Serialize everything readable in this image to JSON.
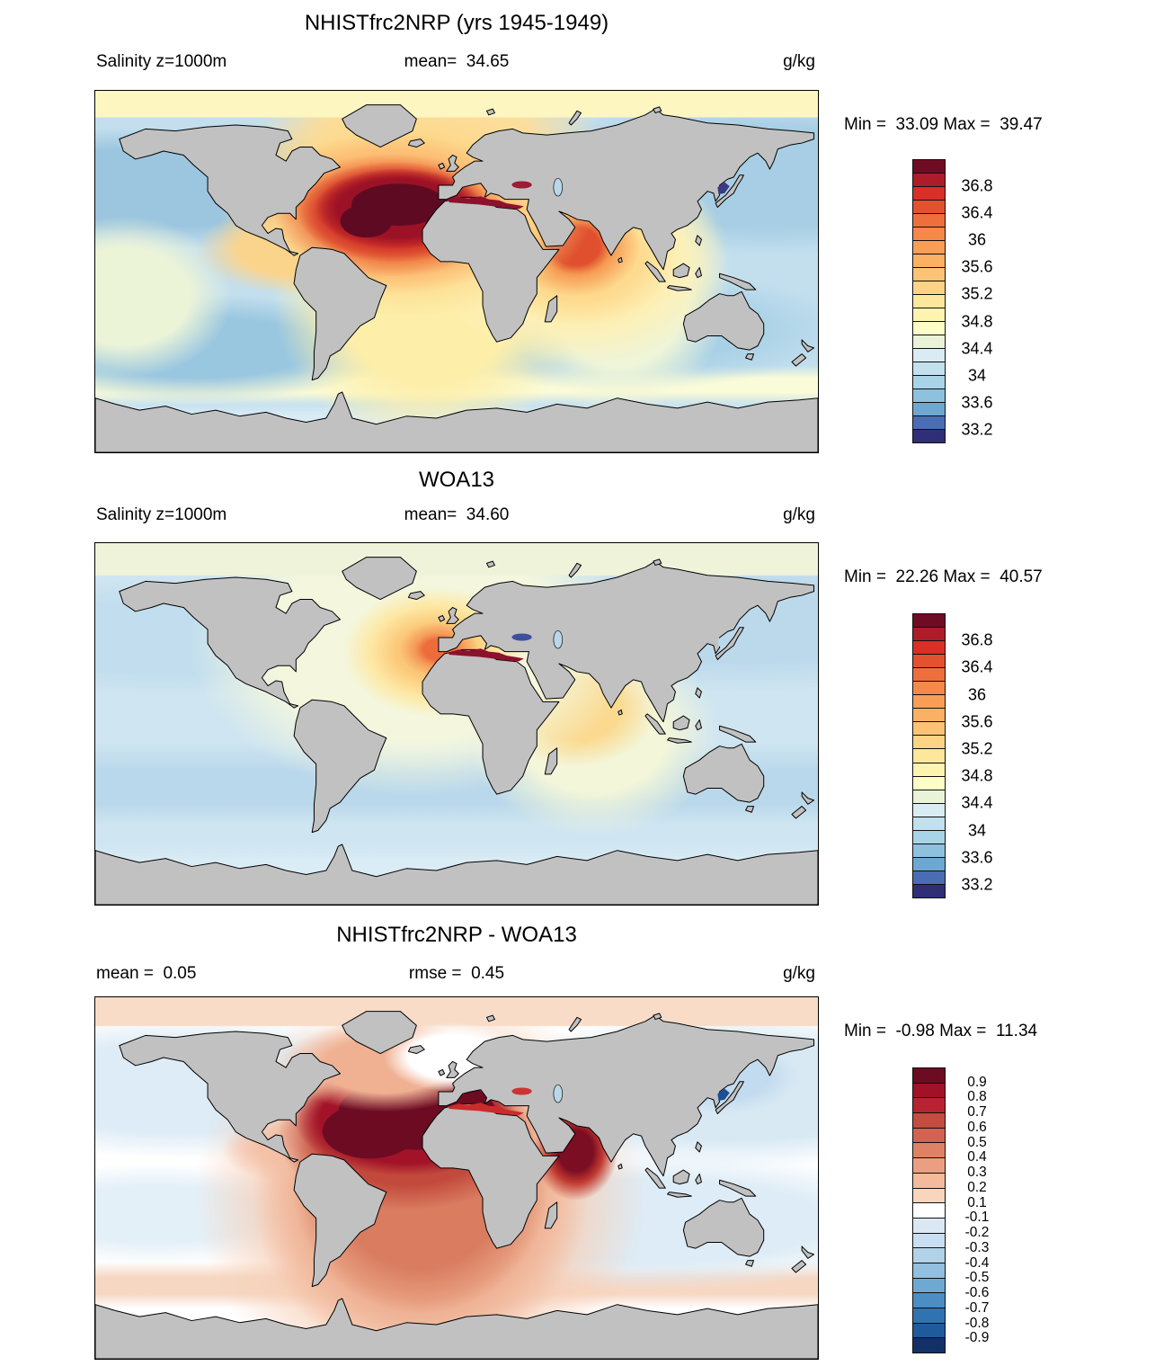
{
  "figure": {
    "land_color": "#c1c1c1",
    "coastline_color": "#000000",
    "background": "#ffffff"
  },
  "panels": [
    {
      "id": "model",
      "title": "NHISTfrc2NRP (yrs 1945-1949)",
      "left_label": "Salinity z=1000m",
      "center_label": "mean=  34.65",
      "units": "g/kg",
      "stats": "Min =  33.09 Max =  39.47",
      "colorbar": {
        "segments": [
          "#6f0b23",
          "#ad1c29",
          "#d92f27",
          "#e4512f",
          "#ee6f3b",
          "#f5884a",
          "#f99e57",
          "#fbb164",
          "#fcc376",
          "#fdd485",
          "#fde79b",
          "#fdf4af",
          "#fdfdc8",
          "#eaf3d7",
          "#d9ecf4",
          "#c2e0ee",
          "#a9d3e7",
          "#8ec1de",
          "#6ea7d0",
          "#4a6db4",
          "#2e2f77"
        ],
        "ticks": [
          "36.8",
          "36.4",
          "36",
          "35.6",
          "35.2",
          "34.8",
          "34.4",
          "34",
          "33.6",
          "33.2"
        ],
        "tick_start": 2,
        "tick_step": 2
      }
    },
    {
      "id": "obs",
      "title": "WOA13",
      "left_label": "Salinity z=1000m",
      "center_label": "mean=  34.60",
      "units": "g/kg",
      "stats": "Min =  22.26 Max =  40.57",
      "colorbar": {
        "segments": [
          "#6f0b23",
          "#ad1c29",
          "#d92f27",
          "#e4512f",
          "#ee6f3b",
          "#f5884a",
          "#f99e57",
          "#fbb164",
          "#fcc376",
          "#fdd485",
          "#fde79b",
          "#fdf4af",
          "#fdfdc8",
          "#eaf3d7",
          "#d9ecf4",
          "#c2e0ee",
          "#a9d3e7",
          "#8ec1de",
          "#6ea7d0",
          "#4a6db4",
          "#2e2f77"
        ],
        "ticks": [
          "36.8",
          "36.4",
          "36",
          "35.6",
          "35.2",
          "34.8",
          "34.4",
          "34",
          "33.6",
          "33.2"
        ],
        "tick_start": 2,
        "tick_step": 2
      }
    },
    {
      "id": "diff",
      "title": "NHISTfrc2NRP - WOA13",
      "left_label": "mean =  0.05",
      "center_label": "rmse =  0.45",
      "units": "g/kg",
      "stats": "Min =  -0.98 Max =  11.34",
      "colorbar": {
        "segments": [
          "#6d0b23",
          "#a11228",
          "#b72330",
          "#c44c41",
          "#d16350",
          "#de8166",
          "#eb9f80",
          "#f3bb9c",
          "#f9d5bd",
          "#ffffff",
          "#dbe8f3",
          "#c9def0",
          "#b1d2e7",
          "#92c0de",
          "#6ea9d2",
          "#4c8dc3",
          "#2f73b2",
          "#1f5a9d",
          "#123166"
        ],
        "ticks": [
          "0.9",
          "0.8",
          "0.7",
          "0.6",
          "0.5",
          "0.4",
          "0.3",
          "0.2",
          "0.1",
          "-0.1",
          "-0.2",
          "-0.3",
          "-0.4",
          "-0.5",
          "-0.6",
          "-0.7",
          "-0.8",
          "-0.9"
        ],
        "tick_start": 1,
        "tick_step": 1
      }
    }
  ],
  "chart_data": [
    {
      "type": "heatmap",
      "subtype": "global filled-contour map, equirectangular projection",
      "title": "NHISTfrc2NRP (yrs 1945-1949)",
      "variable": "Salinity",
      "level": "z=1000m",
      "units": "g/kg",
      "mean": 34.65,
      "min": 33.09,
      "max": 39.47,
      "contour_interval": 0.2,
      "colorbar_tick_values": [
        36.8,
        36.4,
        36,
        35.6,
        35.2,
        34.8,
        34.4,
        34,
        33.6,
        33.2
      ],
      "palette": "diverging dark-red / orange / pale-yellow / light-blue / dark-navy",
      "legend_position": "right",
      "features": [
        "very high salinity (>37, dark maroon) Mediterranean-outflow tongue in subtropical North Atlantic west of Gibraltar",
        "Mediterranean Sea at scale maximum (dark red)",
        "high-salinity orange plume in the Arabian Sea off Oman",
        "pale-yellow equatorial Atlantic and Arctic band",
        "fresh (~33.8-34.4, light blue) North Pacific and Southern Ocean",
        "dark navy low-salinity spot in the Sea of Japan",
        "pale yellow circum-Antarctic band near 55S"
      ]
    },
    {
      "type": "heatmap",
      "subtype": "global filled-contour map, equirectangular projection",
      "title": "WOA13",
      "variable": "Salinity",
      "level": "z=1000m",
      "units": "g/kg",
      "mean": 34.6,
      "min": 22.26,
      "max": 40.57,
      "contour_interval": 0.2,
      "colorbar_tick_values": [
        36.8,
        36.4,
        36,
        35.6,
        35.2,
        34.8,
        34.4,
        34,
        33.6,
        33.2
      ],
      "palette": "diverging dark-red / orange / pale-yellow / light-blue / dark-navy",
      "legend_position": "right",
      "features": [
        "moderate high-salinity (orange) patch west of Gibraltar",
        "Mediterranean Sea at scale maximum (dark red)",
        "Black Sea at scale minimum (dark navy)",
        "sandy-yellow Arabian Sea",
        "pale green-cream Arctic band",
        "fresh light-blue Pacific and Southern Ocean"
      ]
    },
    {
      "type": "heatmap",
      "subtype": "global filled-contour difference map, equirectangular projection",
      "title": "NHISTfrc2NRP - WOA13",
      "variable": "Salinity difference",
      "level": "z=1000m",
      "units": "g/kg",
      "mean": 0.05,
      "rmse": 0.45,
      "min": -0.98,
      "max": 11.34,
      "contour_interval": 0.1,
      "colorbar_tick_values": [
        0.9,
        0.8,
        0.7,
        0.6,
        0.5,
        0.4,
        0.3,
        0.2,
        0.1,
        -0.1,
        -0.2,
        -0.3,
        -0.4,
        -0.5,
        -0.6,
        -0.7,
        -0.8,
        -0.9
      ],
      "palette": "diverging dark-red / salmon / white / light-blue / dark-navy",
      "legend_position": "right",
      "features": [
        "large positive bias (>0.9, dark maroon) across the subtropical North Atlantic",
        "positive (red) Mediterranean and Arabian Sea plume",
        "salmon positive bias extending through the South Atlantic",
        "weak negative bias (pale blue) in North Pacific",
        "strong negative bias spot (dark navy) in the Sea of Japan",
        "pale salmon Arctic band and circum-Antarctic ring"
      ]
    }
  ]
}
